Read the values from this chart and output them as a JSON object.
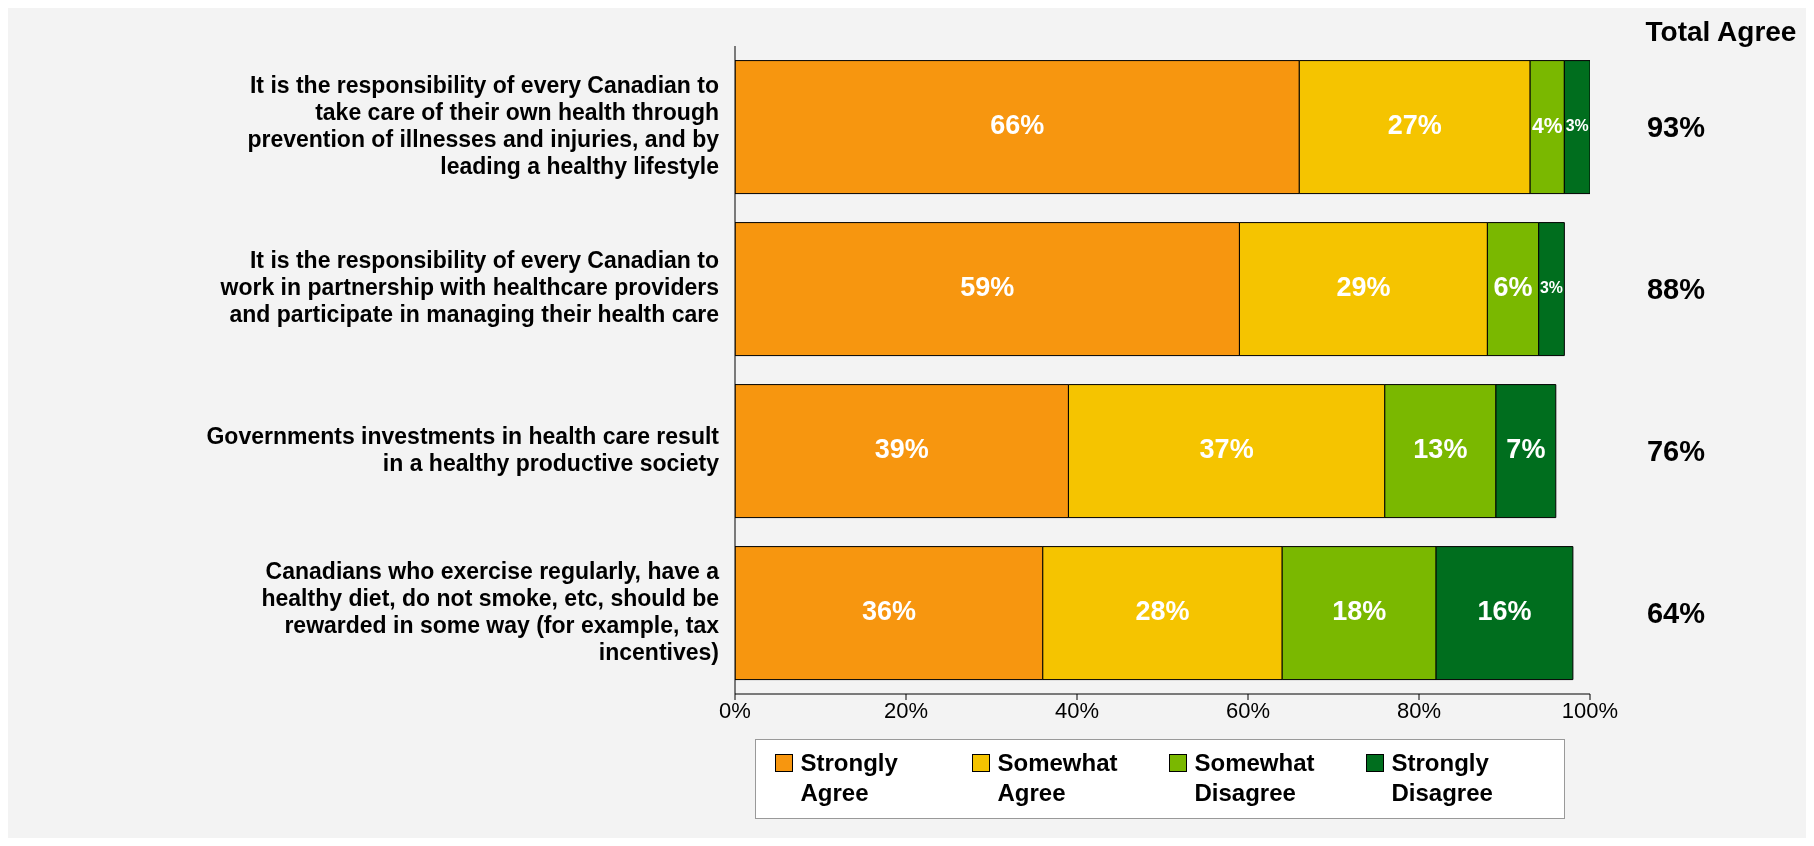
{
  "chart_data": {
    "type": "bar",
    "orientation": "horizontal",
    "stacked": true,
    "legend": "bottom",
    "categories": [
      "It is the responsibility of every Canadian to take care of their own health through prevention of illnesses and injuries, and by leading a healthy lifestyle",
      "It is the responsibility of every Canadian to work in partnership with healthcare providers and participate in managing their health care",
      "Governments investments in health care result in a healthy productive society",
      "Canadians who exercise regularly, have a healthy diet, do not smoke, etc, should be rewarded in some way (for example, tax incentives)"
    ],
    "series": [
      {
        "name": "Strongly Agree",
        "color": "#f7960f",
        "values": [
          66,
          59,
          39,
          36
        ],
        "value_labels": [
          "66%",
          "59%",
          "39%",
          "36%"
        ]
      },
      {
        "name": "Somewhat Agree",
        "color": "#f5c400",
        "values": [
          27,
          29,
          37,
          28
        ],
        "value_labels": [
          "27%",
          "29%",
          "37%",
          "28%"
        ]
      },
      {
        "name": "Somewhat Disagree",
        "color": "#7ab800",
        "values": [
          4,
          6,
          13,
          18
        ],
        "value_labels": [
          "4%",
          "6%",
          "13%",
          "18%"
        ]
      },
      {
        "name": "Strongly Disagree",
        "color": "#006e1e",
        "values": [
          3,
          3,
          7,
          16
        ],
        "value_labels": [
          "3%",
          "3%",
          "7%",
          "16%"
        ]
      }
    ],
    "xlim": [
      0,
      100
    ],
    "xticks": [
      {
        "value": 0,
        "label": "0%"
      },
      {
        "value": 20,
        "label": "20%"
      },
      {
        "value": 40,
        "label": "40%"
      },
      {
        "value": 60,
        "label": "60%"
      },
      {
        "value": 80,
        "label": "80%"
      },
      {
        "value": 100,
        "label": "100%"
      }
    ],
    "annotations": [
      "Total Agree",
      "93%",
      "88%",
      "76%",
      "64%"
    ]
  }
}
